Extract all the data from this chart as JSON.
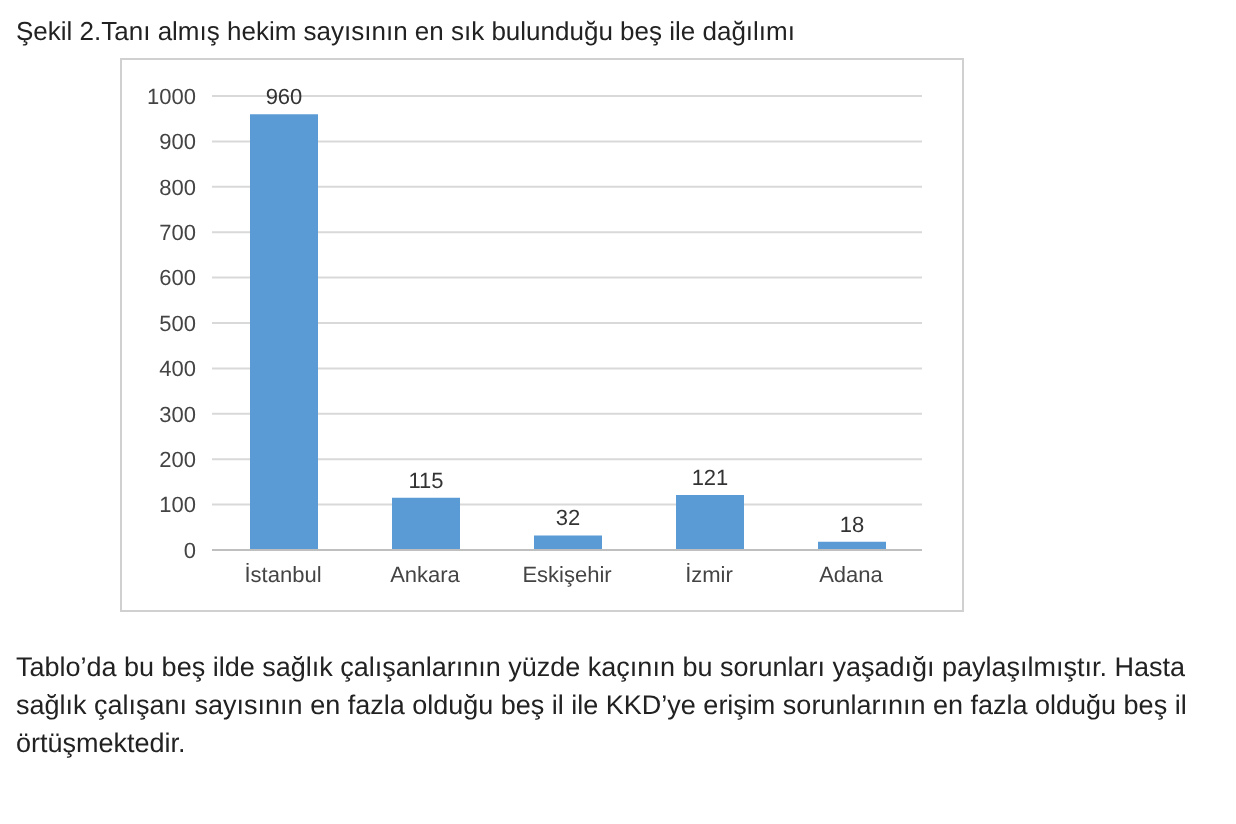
{
  "chart_data": {
    "type": "bar",
    "title": "Şekil 2.Tanı almış hekim sayısının en sık bulunduğu beş ile dağılımı",
    "categories": [
      "İstanbul",
      "Ankara",
      "Eskişehir",
      "İzmir",
      "Adana"
    ],
    "values": [
      960,
      115,
      32,
      121,
      18
    ],
    "color": "#5b9bd5",
    "ylim": [
      0,
      1000
    ],
    "yticks": [
      0,
      100,
      200,
      300,
      400,
      500,
      600,
      700,
      800,
      900,
      1000
    ],
    "grid": "y",
    "data_labels": true,
    "legend": false,
    "annotations": [
      "Tablo’da bu beş ilde sağlık çalışanlarının yüzde kaçının bu sorunları yaşadığı paylaşılmıştır. Hasta sağlık çalışanı sayısının en fazla olduğu beş il ile KKD’ye erişim sorunlarının en fazla olduğu beş il örtüşmektedir."
    ]
  }
}
